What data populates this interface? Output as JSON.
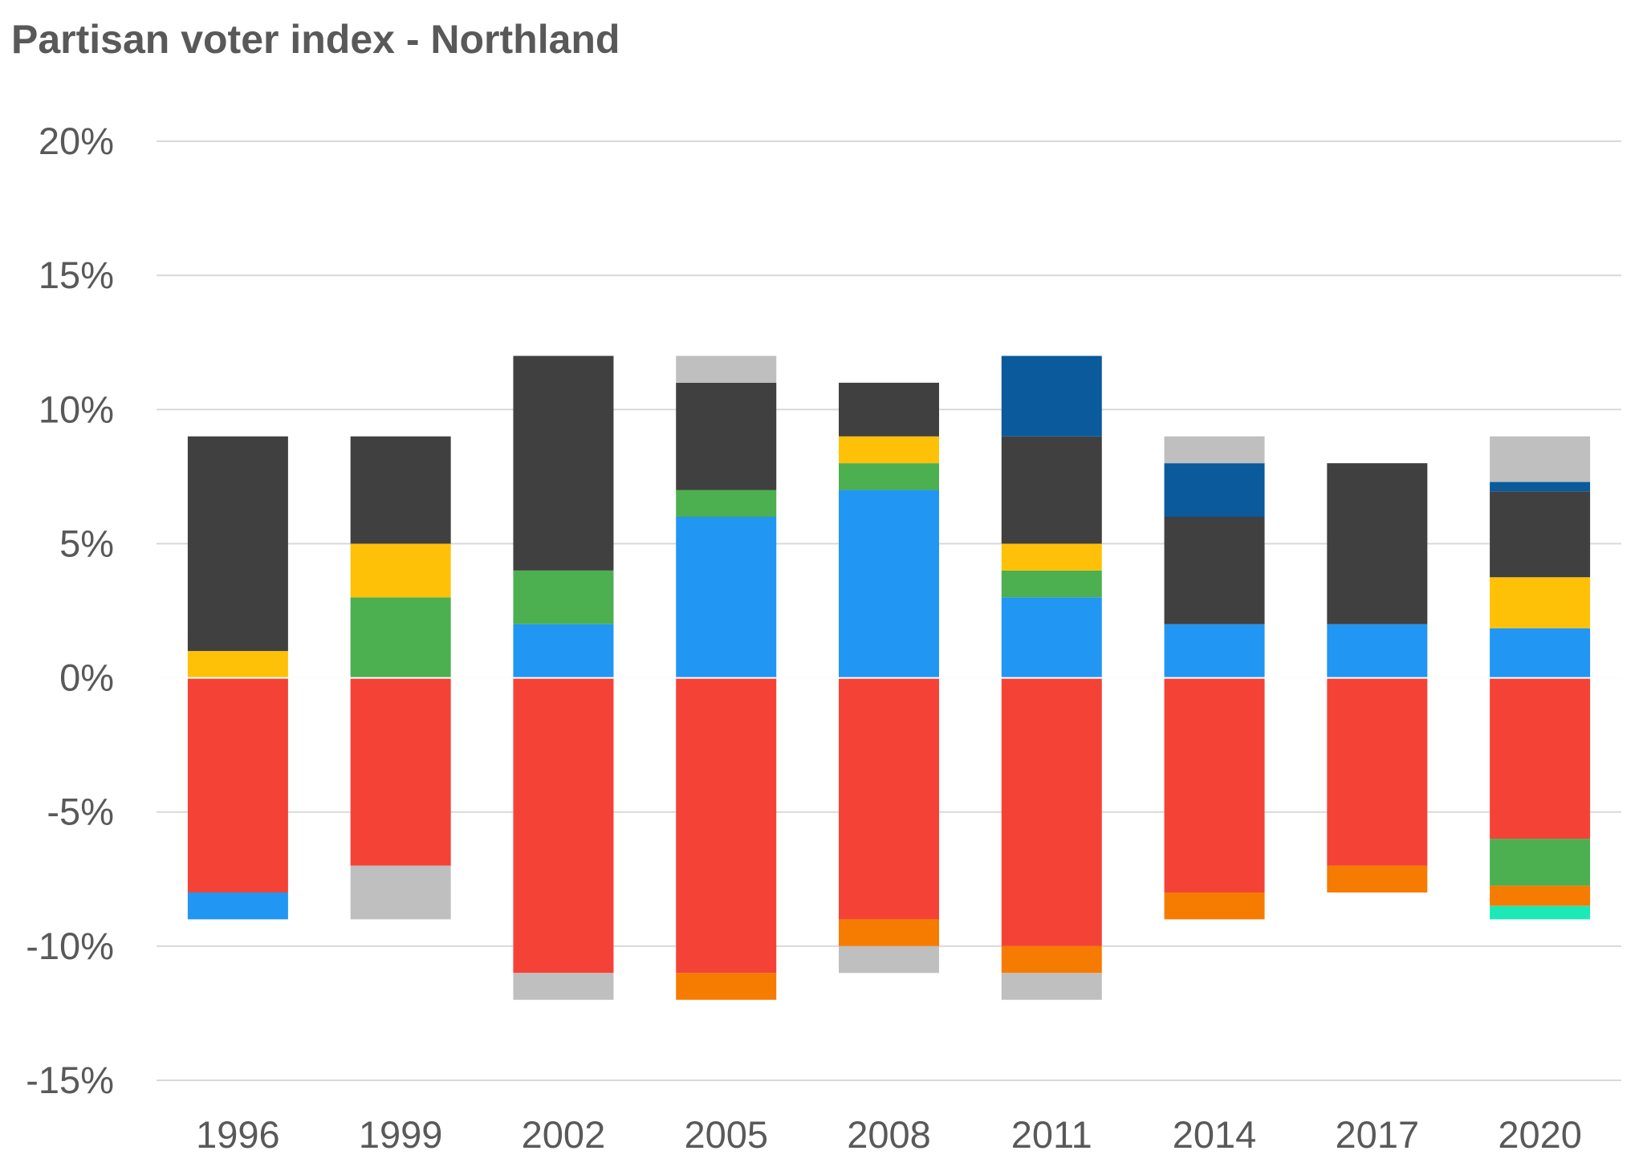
{
  "chart_data": {
    "type": "bar",
    "stacked": true,
    "title": "Partisan voter index - Northland",
    "xlabel": "",
    "ylabel": "",
    "ylim": [
      -15,
      20
    ],
    "ytick_values": [
      20,
      15,
      10,
      5,
      0,
      -5,
      -10,
      -15
    ],
    "ytick_labels": [
      "20%",
      "15%",
      "10%",
      "5%",
      "0%",
      "-5%",
      "-10%",
      "-15%"
    ],
    "grid": true,
    "legend": "none",
    "categories": [
      "1996",
      "1999",
      "2002",
      "2005",
      "2008",
      "2011",
      "2014",
      "2017",
      "2020"
    ],
    "bars": [
      {
        "year": "1996",
        "segments": [
          {
            "color": "#f44336",
            "value": -8
          },
          {
            "color": "#2196f3",
            "value": -1
          },
          {
            "color": "#ffc107",
            "value": 1
          },
          {
            "color": "#404040",
            "value": 8
          }
        ]
      },
      {
        "year": "1999",
        "segments": [
          {
            "color": "#f44336",
            "value": -7
          },
          {
            "color": "#bfbfbf",
            "value": -2
          },
          {
            "color": "#4caf50",
            "value": 3
          },
          {
            "color": "#ffc107",
            "value": 2
          },
          {
            "color": "#404040",
            "value": 4
          }
        ]
      },
      {
        "year": "2002",
        "segments": [
          {
            "color": "#f44336",
            "value": -11
          },
          {
            "color": "#bfbfbf",
            "value": -1
          },
          {
            "color": "#2196f3",
            "value": 2
          },
          {
            "color": "#4caf50",
            "value": 2
          },
          {
            "color": "#404040",
            "value": 8
          }
        ]
      },
      {
        "year": "2005",
        "segments": [
          {
            "color": "#f44336",
            "value": -11
          },
          {
            "color": "#f57c00",
            "value": -1
          },
          {
            "color": "#2196f3",
            "value": 6
          },
          {
            "color": "#4caf50",
            "value": 1
          },
          {
            "color": "#404040",
            "value": 4
          },
          {
            "color": "#bfbfbf",
            "value": 1
          }
        ]
      },
      {
        "year": "2008",
        "segments": [
          {
            "color": "#f44336",
            "value": -9
          },
          {
            "color": "#f57c00",
            "value": -1
          },
          {
            "color": "#bfbfbf",
            "value": -1
          },
          {
            "color": "#2196f3",
            "value": 7
          },
          {
            "color": "#4caf50",
            "value": 1
          },
          {
            "color": "#ffc107",
            "value": 1
          },
          {
            "color": "#404040",
            "value": 2
          }
        ]
      },
      {
        "year": "2011",
        "segments": [
          {
            "color": "#f44336",
            "value": -10
          },
          {
            "color": "#f57c00",
            "value": -1
          },
          {
            "color": "#bfbfbf",
            "value": -1
          },
          {
            "color": "#2196f3",
            "value": 3
          },
          {
            "color": "#4caf50",
            "value": 1
          },
          {
            "color": "#ffc107",
            "value": 1
          },
          {
            "color": "#404040",
            "value": 4
          },
          {
            "color": "#0a5a9c",
            "value": 3
          }
        ]
      },
      {
        "year": "2014",
        "segments": [
          {
            "color": "#f44336",
            "value": -8
          },
          {
            "color": "#f57c00",
            "value": -1
          },
          {
            "color": "#2196f3",
            "value": 2
          },
          {
            "color": "#404040",
            "value": 4
          },
          {
            "color": "#0a5a9c",
            "value": 2
          },
          {
            "color": "#bfbfbf",
            "value": 1
          }
        ]
      },
      {
        "year": "2017",
        "segments": [
          {
            "color": "#f44336",
            "value": -7
          },
          {
            "color": "#f57c00",
            "value": -1
          },
          {
            "color": "#2196f3",
            "value": 2
          },
          {
            "color": "#404040",
            "value": 6
          }
        ]
      },
      {
        "year": "2020",
        "segments": [
          {
            "color": "#f44336",
            "value": -6
          },
          {
            "color": "#4caf50",
            "value": -1.75
          },
          {
            "color": "#f57c00",
            "value": -0.75
          },
          {
            "color": "#1de9b6",
            "value": -0.5
          },
          {
            "color": "#2196f3",
            "value": 1.85
          },
          {
            "color": "#ffc107",
            "value": 1.9
          },
          {
            "color": "#404040",
            "value": 3.2
          },
          {
            "color": "#0a5a9c",
            "value": 0.35
          },
          {
            "color": "#bfbfbf",
            "value": 1.7
          }
        ]
      }
    ]
  }
}
